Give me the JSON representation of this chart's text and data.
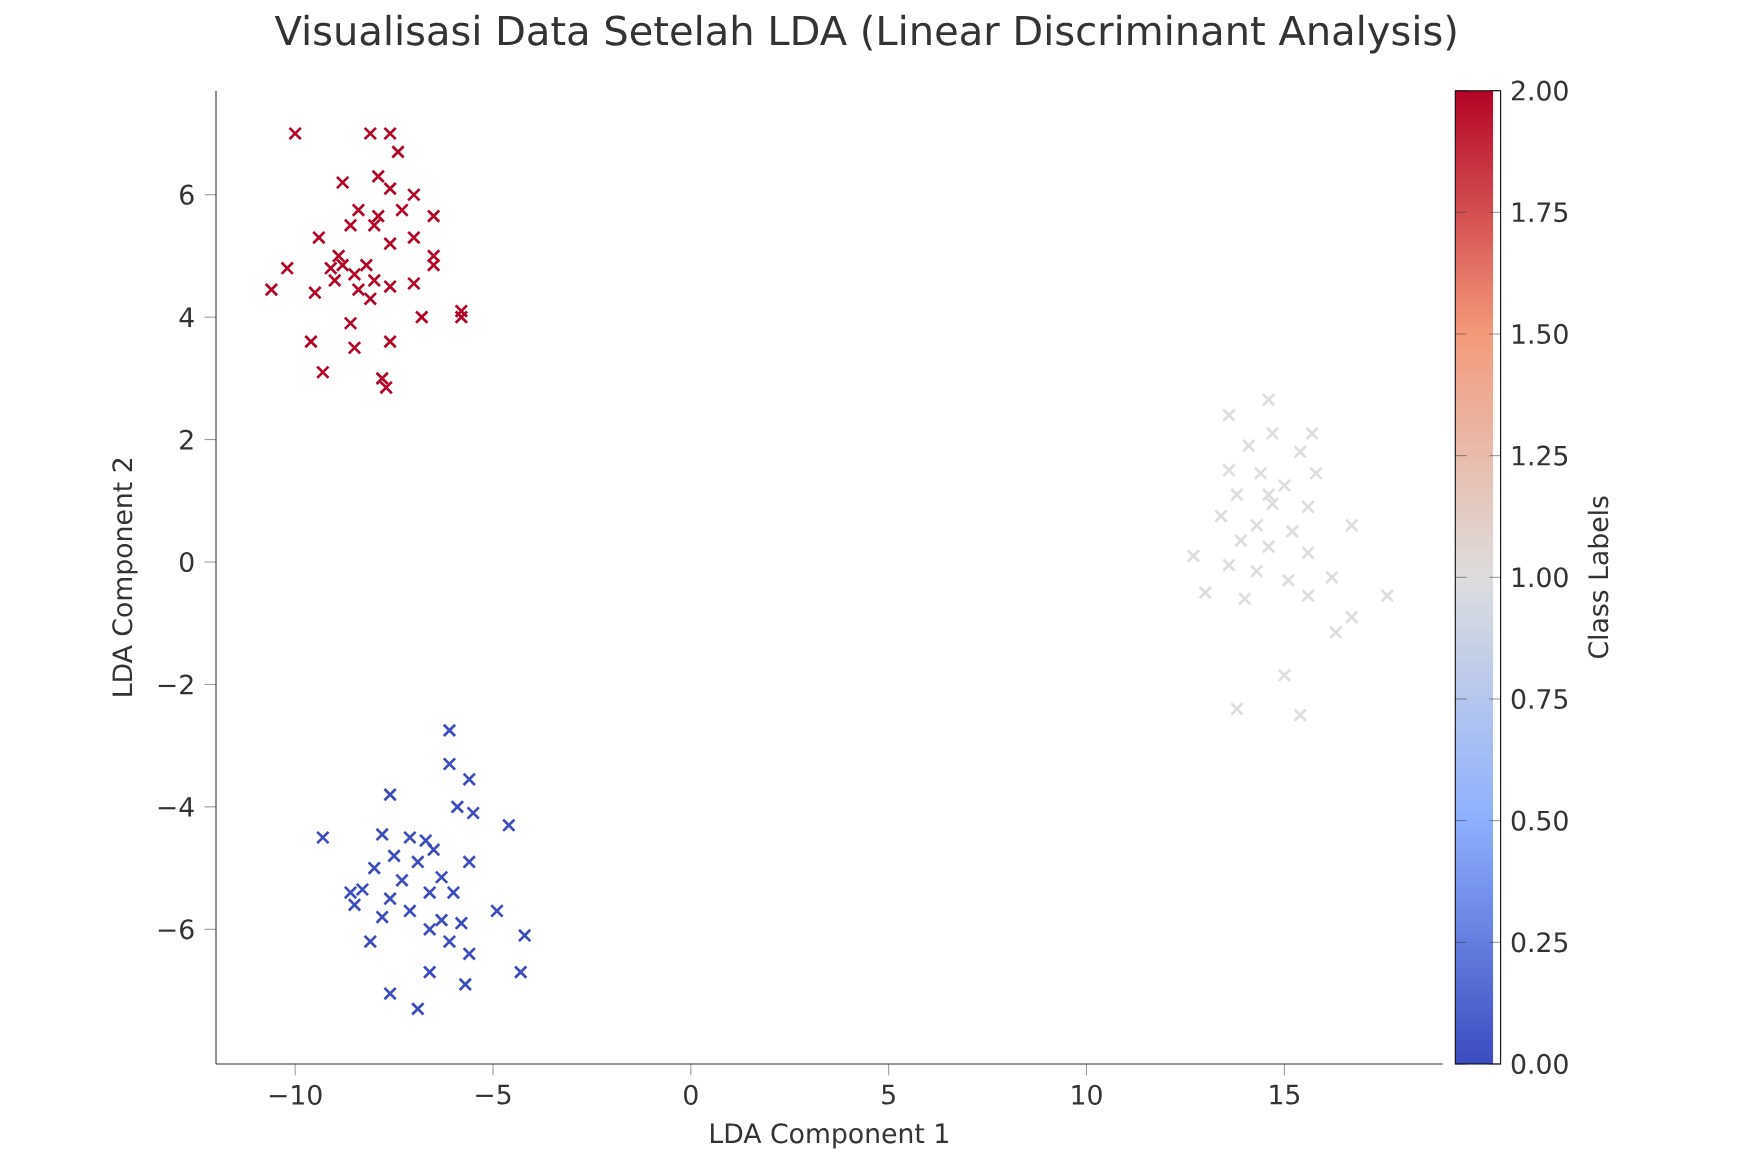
{
  "chart_data": {
    "type": "scatter",
    "title": "Visualisasi Data Setelah LDA (Linear Discriminant Analysis)",
    "xlabel": "LDA Component 1",
    "ylabel": "LDA Component 2",
    "clabel": "Class Labels",
    "x": [
      -10.0,
      -8.1,
      -7.6,
      -7.4,
      -8.8,
      -7.9,
      -7.6,
      -7.0,
      -8.4,
      -7.3,
      -6.5,
      -8.6,
      -8.0,
      -9.4,
      -7.0,
      -7.6,
      -8.9,
      -6.5,
      -10.2,
      -9.1,
      -8.5,
      -6.5,
      -9.0,
      -8.0,
      -10.6,
      -8.4,
      -7.6,
      -7.0,
      -9.5,
      -8.1,
      -5.8,
      -5.8,
      -6.8,
      -8.6,
      -9.6,
      -7.6,
      -8.5,
      -9.3,
      -7.8,
      -7.7,
      -7.9,
      -8.8,
      -8.2,
      -6.1,
      -6.1,
      -5.6,
      -7.6,
      -5.9,
      -5.5,
      -4.6,
      -9.3,
      -7.8,
      -7.1,
      -6.7,
      -7.5,
      -6.9,
      -5.6,
      -8.0,
      -6.3,
      -7.3,
      -8.3,
      -6.6,
      -6.0,
      -7.6,
      -8.5,
      -7.1,
      -4.9,
      -7.8,
      -6.3,
      -5.8,
      -6.6,
      -4.2,
      -6.1,
      -8.1,
      -5.6,
      -6.6,
      -4.3,
      -5.7,
      -7.6,
      -6.9,
      -6.5,
      -8.6,
      14.6,
      13.6,
      14.7,
      15.7,
      14.1,
      15.4,
      13.6,
      14.4,
      15.8,
      15.0,
      13.8,
      14.7,
      15.6,
      13.4,
      14.3,
      16.7,
      15.2,
      13.9,
      14.6,
      12.7,
      15.6,
      13.6,
      14.3,
      16.2,
      15.1,
      13.0,
      14.0,
      17.6,
      15.6,
      16.7,
      16.3,
      15.0,
      13.8,
      15.4,
      14.6
    ],
    "values": [
      7.0,
      7.0,
      7.0,
      6.7,
      6.2,
      6.3,
      6.1,
      6.0,
      5.75,
      5.75,
      5.65,
      5.5,
      5.5,
      5.3,
      5.3,
      5.2,
      5.0,
      5.0,
      4.8,
      4.8,
      4.7,
      4.85,
      4.6,
      4.6,
      4.45,
      4.45,
      4.5,
      4.55,
      4.4,
      4.3,
      4.1,
      4.0,
      4.0,
      3.9,
      3.6,
      3.6,
      3.5,
      3.1,
      3.0,
      2.85,
      5.65,
      4.85,
      4.85,
      -2.75,
      -3.3,
      -3.55,
      -3.8,
      -4.0,
      -4.1,
      -4.3,
      -4.5,
      -4.45,
      -4.5,
      -4.55,
      -4.8,
      -4.9,
      -4.9,
      -5.0,
      -5.15,
      -5.2,
      -5.35,
      -5.4,
      -5.4,
      -5.5,
      -5.6,
      -5.7,
      -5.7,
      -5.8,
      -5.85,
      -5.9,
      -6.0,
      -6.1,
      -6.2,
      -6.2,
      -6.4,
      -6.7,
      -6.7,
      -6.9,
      -7.05,
      -7.3,
      -4.7,
      -5.4,
      2.65,
      2.4,
      2.1,
      2.1,
      1.9,
      1.8,
      1.5,
      1.45,
      1.45,
      1.25,
      1.1,
      0.95,
      0.9,
      0.75,
      0.6,
      0.6,
      0.5,
      0.35,
      0.25,
      0.1,
      0.15,
      -0.05,
      -0.15,
      -0.25,
      -0.3,
      -0.5,
      -0.6,
      -0.55,
      -0.55,
      -0.9,
      -1.15,
      -1.85,
      -2.4,
      -2.5,
      1.1
    ],
    "cvalues": [
      2,
      2,
      2,
      2,
      2,
      2,
      2,
      2,
      2,
      2,
      2,
      2,
      2,
      2,
      2,
      2,
      2,
      2,
      2,
      2,
      2,
      2,
      2,
      2,
      2,
      2,
      2,
      2,
      2,
      2,
      2,
      2,
      2,
      2,
      2,
      2,
      2,
      2,
      2,
      2,
      2,
      2,
      2,
      0,
      0,
      0,
      0,
      0,
      0,
      0,
      0,
      0,
      0,
      0,
      0,
      0,
      0,
      0,
      0,
      0,
      0,
      0,
      0,
      0,
      0,
      0,
      0,
      0,
      0,
      0,
      0,
      0,
      0,
      0,
      0,
      0,
      0,
      0,
      0,
      0,
      0,
      0,
      1,
      1,
      1,
      1,
      1,
      1,
      1,
      1,
      1,
      1,
      1,
      1,
      1,
      1,
      1,
      1,
      1,
      1,
      1,
      1,
      1,
      1,
      1,
      1,
      1,
      1,
      1,
      1,
      1,
      1,
      1,
      1,
      1,
      1,
      1
    ],
    "marker": "cross",
    "xlim": [
      -12,
      19
    ],
    "ylim": [
      -8.2,
      7.7
    ],
    "xticks": [
      {
        "value": -10,
        "label": "−10"
      },
      {
        "value": -5,
        "label": "−5"
      },
      0,
      5,
      10,
      15
    ],
    "yticks": [
      {
        "value": -6,
        "label": "−6"
      },
      {
        "value": -4,
        "label": "−4"
      },
      {
        "value": -2,
        "label": "−2"
      },
      0,
      2,
      4,
      6
    ],
    "clim": [
      0,
      2
    ],
    "cticks": [
      {
        "value": 0,
        "label": "0.00"
      },
      0.25,
      {
        "value": 0.5,
        "label": "0.50"
      },
      0.75,
      {
        "value": 1,
        "label": "1.00"
      },
      1.25,
      {
        "value": 1.5,
        "label": "1.50"
      },
      1.75,
      {
        "value": 2,
        "label": "2.00"
      }
    ]
  }
}
